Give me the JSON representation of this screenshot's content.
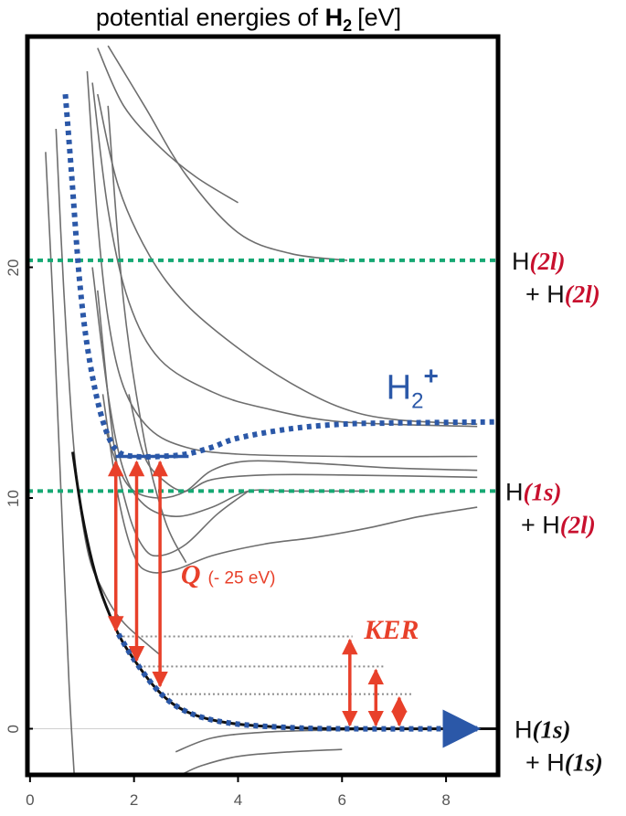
{
  "chart_data": {
    "type": "line",
    "title": {
      "prefix": "potential energies of ",
      "molecule": "H",
      "subscript": "2",
      "unit": "[eV]"
    },
    "xlabel": "",
    "ylabel": "",
    "xlim": [
      -0.05,
      9.0
    ],
    "ylim": [
      -2.0,
      30.0
    ],
    "x_ticks": [
      0,
      2,
      4,
      6,
      8
    ],
    "y_ticks": [
      0,
      10,
      20
    ],
    "grid": false,
    "colors": {
      "frame": "#000000",
      "states": "#6e6e6e",
      "ion": "#2b58a8",
      "asymptote": "#16a873",
      "arrow": "#e8402a",
      "label_red": "#c8102e",
      "levels": "#8a8a8a"
    },
    "ground_state": {
      "name": "H2 ground state",
      "points": [
        [
          0.82,
          12.0
        ],
        [
          1.0,
          9.3
        ],
        [
          1.2,
          7.2
        ],
        [
          1.4,
          5.7
        ],
        [
          1.7,
          4.1
        ],
        [
          2.0,
          3.0
        ],
        [
          2.4,
          1.8
        ],
        [
          2.8,
          1.0
        ],
        [
          3.3,
          0.5
        ],
        [
          4.0,
          0.2
        ],
        [
          5.0,
          0.05
        ],
        [
          6.0,
          0.0
        ],
        [
          9.0,
          0.0
        ]
      ]
    },
    "ion_curve": {
      "name": "H2+",
      "points": [
        [
          0.68,
          27.5
        ],
        [
          0.8,
          24.0
        ],
        [
          0.95,
          19.5
        ],
        [
          1.1,
          16.6
        ],
        [
          1.3,
          14.2
        ],
        [
          1.5,
          12.7
        ],
        [
          1.7,
          12.0
        ],
        [
          2.0,
          11.8
        ],
        [
          2.5,
          11.8
        ],
        [
          3.0,
          11.9
        ],
        [
          3.5,
          12.2
        ],
        [
          4.0,
          12.6
        ],
        [
          5.0,
          13.0
        ],
        [
          6.0,
          13.2
        ],
        [
          7.0,
          13.25
        ],
        [
          9.0,
          13.3
        ]
      ]
    },
    "ion_dissociation": {
      "name": "ground state dissociation",
      "points": [
        [
          1.7,
          4.1
        ],
        [
          2.0,
          3.0
        ],
        [
          2.4,
          1.8
        ],
        [
          2.8,
          1.0
        ],
        [
          3.3,
          0.5
        ],
        [
          4.0,
          0.2
        ],
        [
          5.0,
          0.05
        ],
        [
          6.0,
          0.0
        ],
        [
          8.6,
          0.0
        ]
      ]
    },
    "excited_states": [
      {
        "points": [
          [
            0.3,
            25.0
          ],
          [
            0.45,
            18.0
          ],
          [
            0.6,
            10.0
          ],
          [
            0.75,
            2.0
          ],
          [
            0.85,
            -2.0
          ]
        ]
      },
      {
        "points": [
          [
            0.5,
            26.0
          ],
          [
            0.65,
            19.0
          ],
          [
            0.85,
            12.0
          ],
          [
            1.1,
            7.8
          ],
          [
            1.4,
            6.0
          ],
          [
            1.8,
            4.6
          ],
          [
            2.5,
            3.2
          ]
        ]
      },
      {
        "points": [
          [
            1.1,
            28.5
          ],
          [
            1.3,
            22.0
          ],
          [
            1.5,
            17.8
          ],
          [
            1.8,
            14.8
          ],
          [
            2.3,
            13.0
          ],
          [
            3.0,
            12.2
          ],
          [
            4.0,
            11.9
          ],
          [
            6.0,
            11.8
          ],
          [
            8.6,
            11.8
          ]
        ]
      },
      {
        "points": [
          [
            1.2,
            28.0
          ],
          [
            1.5,
            22.5
          ],
          [
            1.9,
            18.5
          ],
          [
            2.5,
            16.0
          ],
          [
            3.5,
            14.6
          ],
          [
            4.5,
            13.9
          ],
          [
            6.0,
            13.3
          ],
          [
            8.6,
            13.1
          ]
        ]
      },
      {
        "points": [
          [
            1.3,
            27.5
          ],
          [
            1.7,
            23.5
          ],
          [
            2.3,
            20.5
          ],
          [
            3.0,
            18.4
          ],
          [
            4.0,
            16.5
          ],
          [
            5.0,
            15.0
          ],
          [
            6.0,
            13.9
          ],
          [
            7.0,
            13.4
          ],
          [
            8.6,
            13.2
          ]
        ]
      },
      {
        "points": [
          [
            1.3,
            29.5
          ],
          [
            1.8,
            27.0
          ],
          [
            2.5,
            25.2
          ],
          [
            3.2,
            23.9
          ],
          [
            4.0,
            22.8
          ]
        ]
      },
      {
        "points": [
          [
            1.5,
            29.6
          ],
          [
            2.2,
            27.0
          ],
          [
            3.0,
            24.0
          ],
          [
            4.0,
            21.5
          ],
          [
            5.0,
            20.6
          ],
          [
            6.1,
            20.3
          ]
        ]
      },
      {
        "points": [
          [
            1.2,
            20.0
          ],
          [
            1.5,
            14.5
          ],
          [
            1.8,
            11.2
          ],
          [
            2.2,
            9.7
          ],
          [
            2.8,
            9.2
          ],
          [
            3.5,
            9.6
          ],
          [
            4.2,
            10.3
          ],
          [
            5.0,
            10.3
          ],
          [
            6.5,
            10.3
          ]
        ]
      },
      {
        "points": [
          [
            1.3,
            19.0
          ],
          [
            1.6,
            12.5
          ],
          [
            1.9,
            9.3
          ],
          [
            2.2,
            7.8
          ],
          [
            2.5,
            7.5
          ],
          [
            3.0,
            8.0
          ],
          [
            3.6,
            9.3
          ],
          [
            4.2,
            10.3
          ]
        ]
      },
      {
        "points": [
          [
            1.4,
            14.5
          ],
          [
            1.7,
            10.0
          ],
          [
            2.0,
            7.5
          ],
          [
            2.3,
            6.8
          ],
          [
            2.8,
            6.9
          ],
          [
            3.5,
            7.5
          ],
          [
            4.5,
            8.0
          ],
          [
            5.5,
            8.3
          ],
          [
            6.5,
            8.7
          ],
          [
            7.5,
            9.2
          ],
          [
            8.6,
            9.6
          ]
        ]
      },
      {
        "points": [
          [
            1.45,
            13.0
          ],
          [
            1.7,
            11.3
          ],
          [
            2.0,
            10.3
          ],
          [
            2.5,
            10.0
          ],
          [
            3.0,
            10.3
          ],
          [
            3.5,
            11.2
          ],
          [
            4.2,
            11.6
          ],
          [
            5.5,
            11.5
          ],
          [
            7.0,
            11.3
          ],
          [
            8.6,
            11.2
          ]
        ]
      },
      {
        "points": [
          [
            1.9,
            14.5
          ],
          [
            2.2,
            11.8
          ],
          [
            2.6,
            10.7
          ],
          [
            3.0,
            10.3
          ],
          [
            3.5,
            10.8
          ],
          [
            4.5,
            11.0
          ],
          [
            6.0,
            11.0
          ],
          [
            8.6,
            10.9
          ]
        ]
      },
      {
        "points": [
          [
            1.5,
            27.0
          ],
          [
            1.8,
            18.5
          ],
          [
            2.2,
            12.5
          ],
          [
            2.6,
            9.0
          ],
          [
            3.0,
            7.2
          ]
        ]
      },
      {
        "points": [
          [
            2.8,
            -1.0
          ],
          [
            3.5,
            -0.4
          ],
          [
            4.5,
            -0.15
          ],
          [
            6.0,
            -0.05
          ],
          [
            8.0,
            0.0
          ]
        ]
      },
      {
        "points": [
          [
            2.9,
            -2.0
          ],
          [
            3.3,
            -1.6
          ],
          [
            4.0,
            -1.2
          ],
          [
            5.0,
            -1.0
          ],
          [
            6.0,
            -0.9
          ]
        ]
      }
    ],
    "asymptotes": [
      {
        "y": 20.3,
        "label_parts": [
          "H",
          "(2l)"
        ],
        "label2_parts": [
          "+ H",
          "(2l)"
        ],
        "label_color": "red"
      },
      {
        "y": 10.3,
        "label_parts": [
          "H",
          "(1s)"
        ],
        "label2_parts": [
          "+ H",
          "(2l)"
        ],
        "label_color": "mixed"
      },
      {
        "y": 0.0,
        "label_parts": [
          "H",
          "(1s)"
        ],
        "label2_parts": [
          "+ H",
          "(1s)"
        ],
        "label_color": "black"
      }
    ],
    "ion_label": {
      "text": "H",
      "subscript": "2",
      "superscript": "+"
    },
    "franck_condon_level": {
      "y": 11.8,
      "x_start": 1.65,
      "x_end": 3.05
    },
    "q_arrows": [
      {
        "x": 1.65,
        "y_from": 11.8,
        "y_to": 4.1
      },
      {
        "x": 2.05,
        "y_from": 11.8,
        "y_to": 2.8
      },
      {
        "x": 2.5,
        "y_from": 11.8,
        "y_to": 1.7
      }
    ],
    "q_label": {
      "text": "Q",
      "note": "(- 25 eV)"
    },
    "ker_levels": [
      {
        "y": 4.0,
        "x_from": 1.7,
        "x_to": 6.2
      },
      {
        "y": 2.7,
        "x_from": 2.1,
        "x_to": 6.8
      },
      {
        "y": 1.5,
        "x_from": 2.55,
        "x_to": 7.35
      }
    ],
    "ker_arrows": [
      {
        "x": 6.15,
        "y_from": 4.0,
        "y_to": 0.0
      },
      {
        "x": 6.65,
        "y_from": 2.7,
        "y_to": 0.0
      },
      {
        "x": 7.1,
        "y_from": 1.5,
        "y_to": 0.0
      }
    ],
    "ker_label": {
      "text": "KER"
    }
  }
}
